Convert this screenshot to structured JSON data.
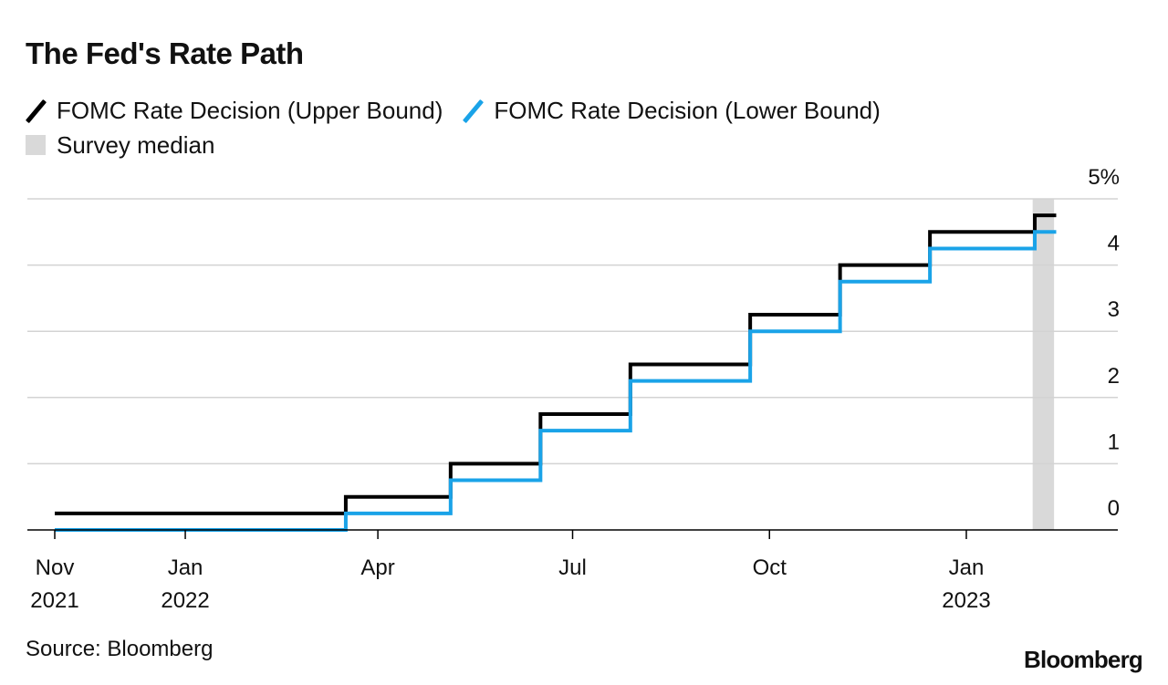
{
  "chart_data": {
    "type": "line",
    "title": "The Fed's Rate Path",
    "source": "Source: Bloomberg",
    "brand": "Bloomberg",
    "legend": [
      {
        "label": "FOMC Rate Decision (Upper Bound)",
        "kind": "line",
        "color": "#000000"
      },
      {
        "label": "FOMC Rate Decision (Lower Bound)",
        "kind": "line",
        "color": "#1aa3e8"
      },
      {
        "label": "Survey median",
        "kind": "box",
        "color": "#d9d9d9"
      }
    ],
    "x_range": [
      "2021-11-01",
      "2023-02-28"
    ],
    "ylim": [
      0,
      5
    ],
    "y_ticks": [
      {
        "value": 5,
        "label": "5%"
      },
      {
        "value": 4,
        "label": "4"
      },
      {
        "value": 3,
        "label": "3"
      },
      {
        "value": 2,
        "label": "2"
      },
      {
        "value": 1,
        "label": "1"
      },
      {
        "value": 0,
        "label": "0"
      }
    ],
    "x_ticks": [
      {
        "date": "2021-11-01",
        "line1": "Nov",
        "line2": "2021"
      },
      {
        "date": "2022-01-01",
        "line1": "Jan",
        "line2": "2022"
      },
      {
        "date": "2022-04-01",
        "line1": "Apr",
        "line2": ""
      },
      {
        "date": "2022-07-01",
        "line1": "Jul",
        "line2": ""
      },
      {
        "date": "2022-10-01",
        "line1": "Oct",
        "line2": ""
      },
      {
        "date": "2023-01-01",
        "line1": "Jan",
        "line2": "2023"
      }
    ],
    "series": [
      {
        "name": "FOMC Rate Decision (Upper Bound)",
        "color": "#000000",
        "steps": [
          {
            "date": "2021-11-01",
            "value": 0.25
          },
          {
            "date": "2022-03-17",
            "value": 0.5
          },
          {
            "date": "2022-05-05",
            "value": 1.0
          },
          {
            "date": "2022-06-16",
            "value": 1.75
          },
          {
            "date": "2022-07-28",
            "value": 2.5
          },
          {
            "date": "2022-09-22",
            "value": 3.25
          },
          {
            "date": "2022-11-03",
            "value": 4.0
          },
          {
            "date": "2022-12-15",
            "value": 4.5
          },
          {
            "date": "2023-02-02",
            "value": 4.75
          }
        ],
        "end": "2023-02-12"
      },
      {
        "name": "FOMC Rate Decision (Lower Bound)",
        "color": "#1aa3e8",
        "steps": [
          {
            "date": "2021-11-01",
            "value": 0.0
          },
          {
            "date": "2022-03-17",
            "value": 0.25
          },
          {
            "date": "2022-05-05",
            "value": 0.75
          },
          {
            "date": "2022-06-16",
            "value": 1.5
          },
          {
            "date": "2022-07-28",
            "value": 2.25
          },
          {
            "date": "2022-09-22",
            "value": 3.0
          },
          {
            "date": "2022-11-03",
            "value": 3.75
          },
          {
            "date": "2022-12-15",
            "value": 4.25
          },
          {
            "date": "2023-02-02",
            "value": 4.5
          }
        ],
        "end": "2023-02-12"
      }
    ],
    "survey_median": {
      "start": "2023-02-01",
      "end": "2023-02-11",
      "color": "#d9d9d9"
    }
  }
}
